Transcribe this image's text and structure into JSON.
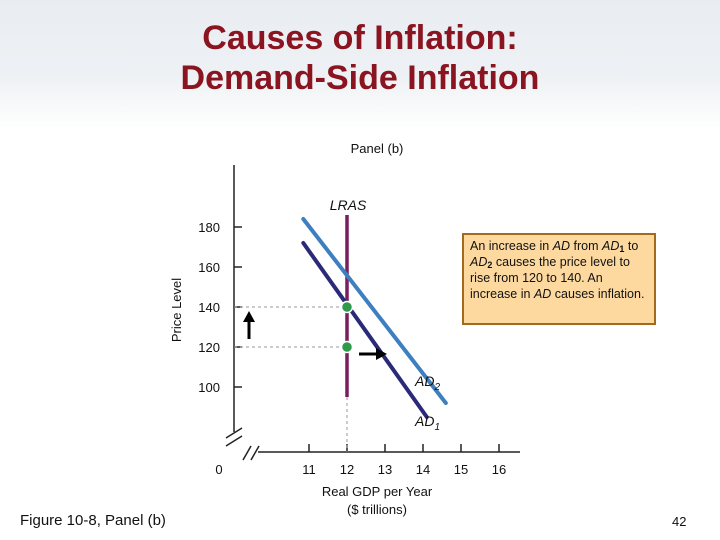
{
  "slide": {
    "title_line1": "Causes of Inflation:",
    "title_line2": "Demand-Side Inflation",
    "figure_caption": "Figure 10-8, Panel (b)",
    "page_number": "42"
  },
  "callout": {
    "p1": "An increase in ",
    "ad1_a": "AD",
    "p2": " from ",
    "ad1_b": "AD",
    "sub1": "1",
    "p3": " to ",
    "ad2": "AD",
    "sub2": "2",
    "p4": " causes the price level to rise from 120 to 140. An increase in ",
    "ad3": "AD",
    "p5": " causes inflation."
  },
  "chart_data": {
    "type": "line",
    "title": "Panel (b)",
    "xlabel_line1": "Real GDP per Year",
    "xlabel_line2": "($ trillions)",
    "ylabel": "Price Level",
    "origin_label": "0",
    "x_ticks": [
      11,
      12,
      13,
      14,
      15,
      16
    ],
    "y_ticks": [
      100,
      120,
      140,
      160,
      180
    ],
    "xlim": [
      10,
      16.5
    ],
    "ylim": [
      85,
      190
    ],
    "axis_break": true,
    "series": [
      {
        "name": "AD",
        "subscript": "1",
        "color": "#2b2a78",
        "x": [
          10.85,
          14.1
        ],
        "y": [
          172,
          85
        ]
      },
      {
        "name": "AD",
        "subscript": "2",
        "color": "#3e7fc0",
        "x": [
          10.85,
          14.6
        ],
        "y": [
          184,
          92
        ]
      }
    ],
    "vertical_lines": [
      {
        "name": "LRAS",
        "x": 12,
        "color": "#7a1f5e"
      }
    ],
    "equilibria": [
      {
        "x": 12,
        "y": 120,
        "color": "#2f9a4a"
      },
      {
        "x": 12,
        "y": 140,
        "color": "#2f9a4a"
      }
    ],
    "arrows": [
      {
        "direction": "up",
        "at": "price axis"
      },
      {
        "direction": "right",
        "at": "AD1 point"
      }
    ]
  }
}
